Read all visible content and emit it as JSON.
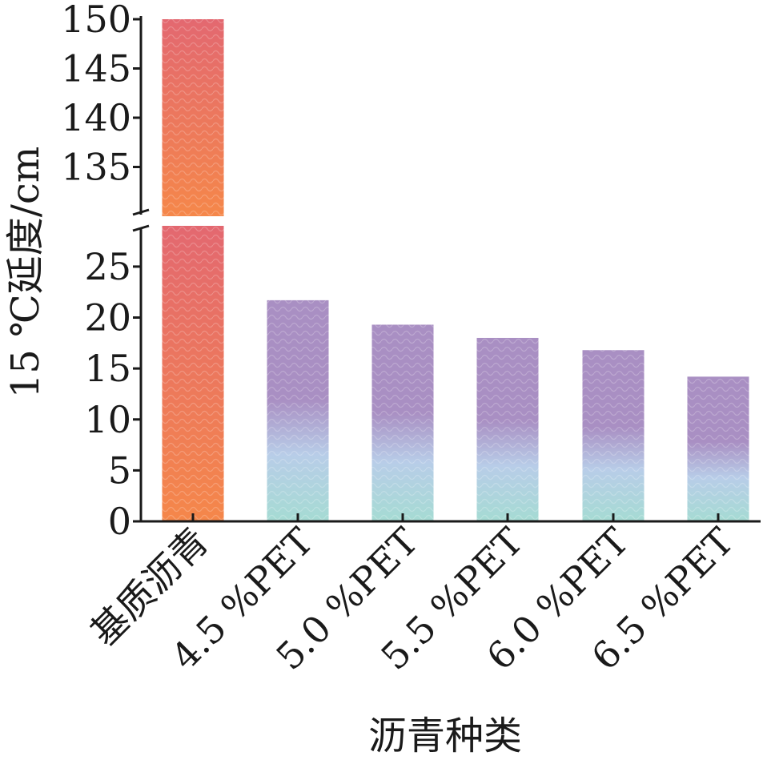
{
  "chart_data": {
    "type": "bar",
    "xlabel": "沥青种类",
    "ylabel": "15 ℃延度/cm",
    "categories": [
      "基质沥青",
      "4.5 %PET",
      "5.0 %PET",
      "5.5 %PET",
      "6.0 %PET",
      "6.5 %PET"
    ],
    "values": [
      150,
      21.7,
      19.3,
      18.0,
      16.8,
      14.2
    ],
    "y_axis_break": true,
    "lower_segment": {
      "ylim": [
        0,
        29
      ],
      "ticks": [
        0,
        5,
        10,
        15,
        20,
        25
      ]
    },
    "upper_segment": {
      "ylim": [
        130,
        150
      ],
      "ticks": [
        135,
        140,
        145,
        150
      ]
    },
    "colors": {
      "base_bar_top": "#e36870",
      "base_bar_bottom": "#f5874a",
      "pet_bar_top": "#a98fc3",
      "pet_bar_mid": "#b8cde8",
      "pet_bar_bottom": "#a5dbd3",
      "axis": "#1a1a1a"
    }
  }
}
